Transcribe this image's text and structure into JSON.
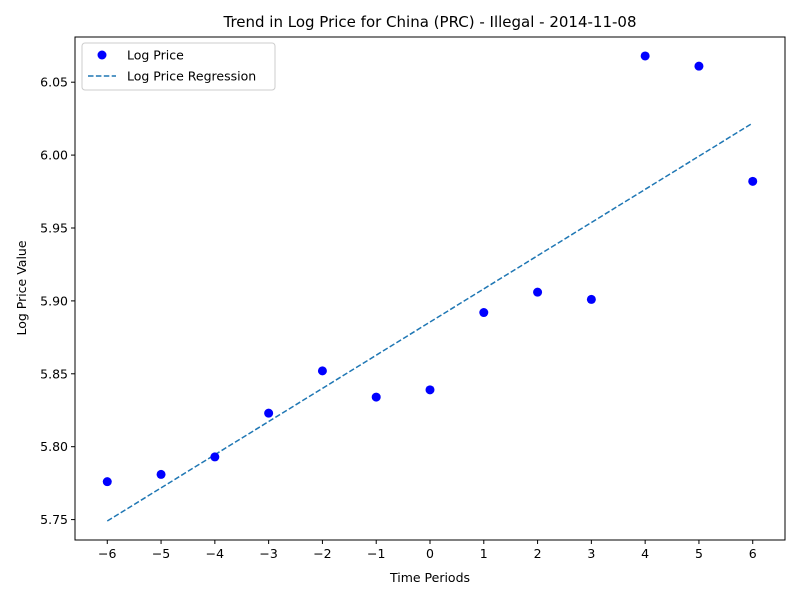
{
  "chart_data": {
    "type": "scatter",
    "title": "Trend in Log Price for China (PRC) - Illegal - 2014-11-08",
    "xlabel": "Time Periods",
    "ylabel": "Log Price Value",
    "xlim": [
      -6.6,
      6.6
    ],
    "ylim": [
      5.736,
      6.081
    ],
    "xticks": [
      -6,
      -5,
      -4,
      -3,
      -2,
      -1,
      0,
      1,
      2,
      3,
      4,
      5,
      6
    ],
    "xtick_labels": [
      "−6",
      "−5",
      "−4",
      "−3",
      "−2",
      "−1",
      "0",
      "1",
      "2",
      "3",
      "4",
      "5",
      "6"
    ],
    "yticks": [
      5.75,
      5.8,
      5.85,
      5.9,
      5.95,
      6.0,
      6.05
    ],
    "ytick_labels": [
      "5.75",
      "5.80",
      "5.85",
      "5.90",
      "5.95",
      "6.00",
      "6.05"
    ],
    "grid": false,
    "legend_position": "top-left",
    "series": [
      {
        "name": "Log Price",
        "kind": "scatter",
        "color": "#0000ff",
        "x": [
          -6,
          -5,
          -4,
          -3,
          -2,
          -1,
          0,
          1,
          2,
          3,
          4,
          5,
          6
        ],
        "y": [
          5.776,
          5.781,
          5.793,
          5.823,
          5.852,
          5.834,
          5.839,
          5.892,
          5.906,
          5.901,
          6.068,
          6.061,
          5.982
        ]
      },
      {
        "name": "Log Price Regression",
        "kind": "line",
        "style": "dashed",
        "color": "#1f77b4",
        "x": [
          -6,
          6
        ],
        "y": [
          5.749,
          6.022
        ]
      }
    ]
  }
}
